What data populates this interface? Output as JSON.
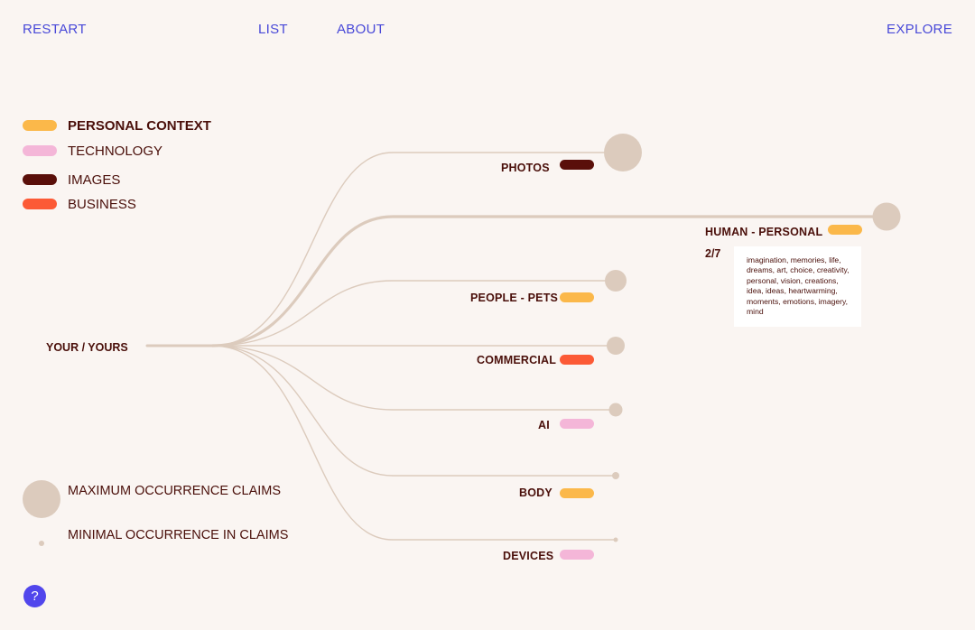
{
  "nav": {
    "restart": "RESTART",
    "list": "LIST",
    "about": "ABOUT",
    "explore": "EXPLORE"
  },
  "legend": {
    "categories": [
      {
        "label": "PERSONAL CONTEXT",
        "color": "#fbb84a",
        "bold": true
      },
      {
        "label": "TECHNOLOGY",
        "color": "#f4b6d8",
        "bold": false
      },
      {
        "label": "IMAGES",
        "color": "#5a0f0a",
        "bold": false
      },
      {
        "label": "BUSINESS",
        "color": "#fc5a36",
        "bold": false
      }
    ],
    "max_label": "MAXIMUM OCCURRENCE CLAIMS",
    "min_label": "MINIMAL OCCURRENCE IN CLAIMS"
  },
  "root": {
    "label": "YOUR / YOURS"
  },
  "nodes": [
    {
      "label": "PHOTOS",
      "category": "IMAGES",
      "color": "#5a0f0a",
      "weight": 0.9
    },
    {
      "label": "HUMAN - PERSONAL",
      "category": "PERSONAL CONTEXT",
      "color": "#fbb84a",
      "weight": 0.6,
      "selected": true
    },
    {
      "label": "PEOPLE - PETS",
      "category": "PERSONAL CONTEXT",
      "color": "#fbb84a",
      "weight": 0.45
    },
    {
      "label": "COMMERCIAL",
      "category": "BUSINESS",
      "color": "#fc5a36",
      "weight": 0.35
    },
    {
      "label": "AI",
      "category": "TECHNOLOGY",
      "color": "#f4b6d8",
      "weight": 0.25
    },
    {
      "label": "BODY",
      "category": "PERSONAL CONTEXT",
      "color": "#fbb84a",
      "weight": 0.08
    },
    {
      "label": "DEVICES",
      "category": "TECHNOLOGY",
      "color": "#f4b6d8",
      "weight": 0.05
    }
  ],
  "detail": {
    "count": "2/7",
    "keywords": "imagination, memories, life, dreams, art, choice, creativity, personal, vision, creations, idea, ideas, heartwarming, moments, emotions, imagery, mind"
  },
  "help": {
    "label": "?"
  },
  "colors": {
    "link": "#dccbbd",
    "node": "#dccbbd",
    "nav": "#4848d8",
    "help": "#5146ec"
  }
}
